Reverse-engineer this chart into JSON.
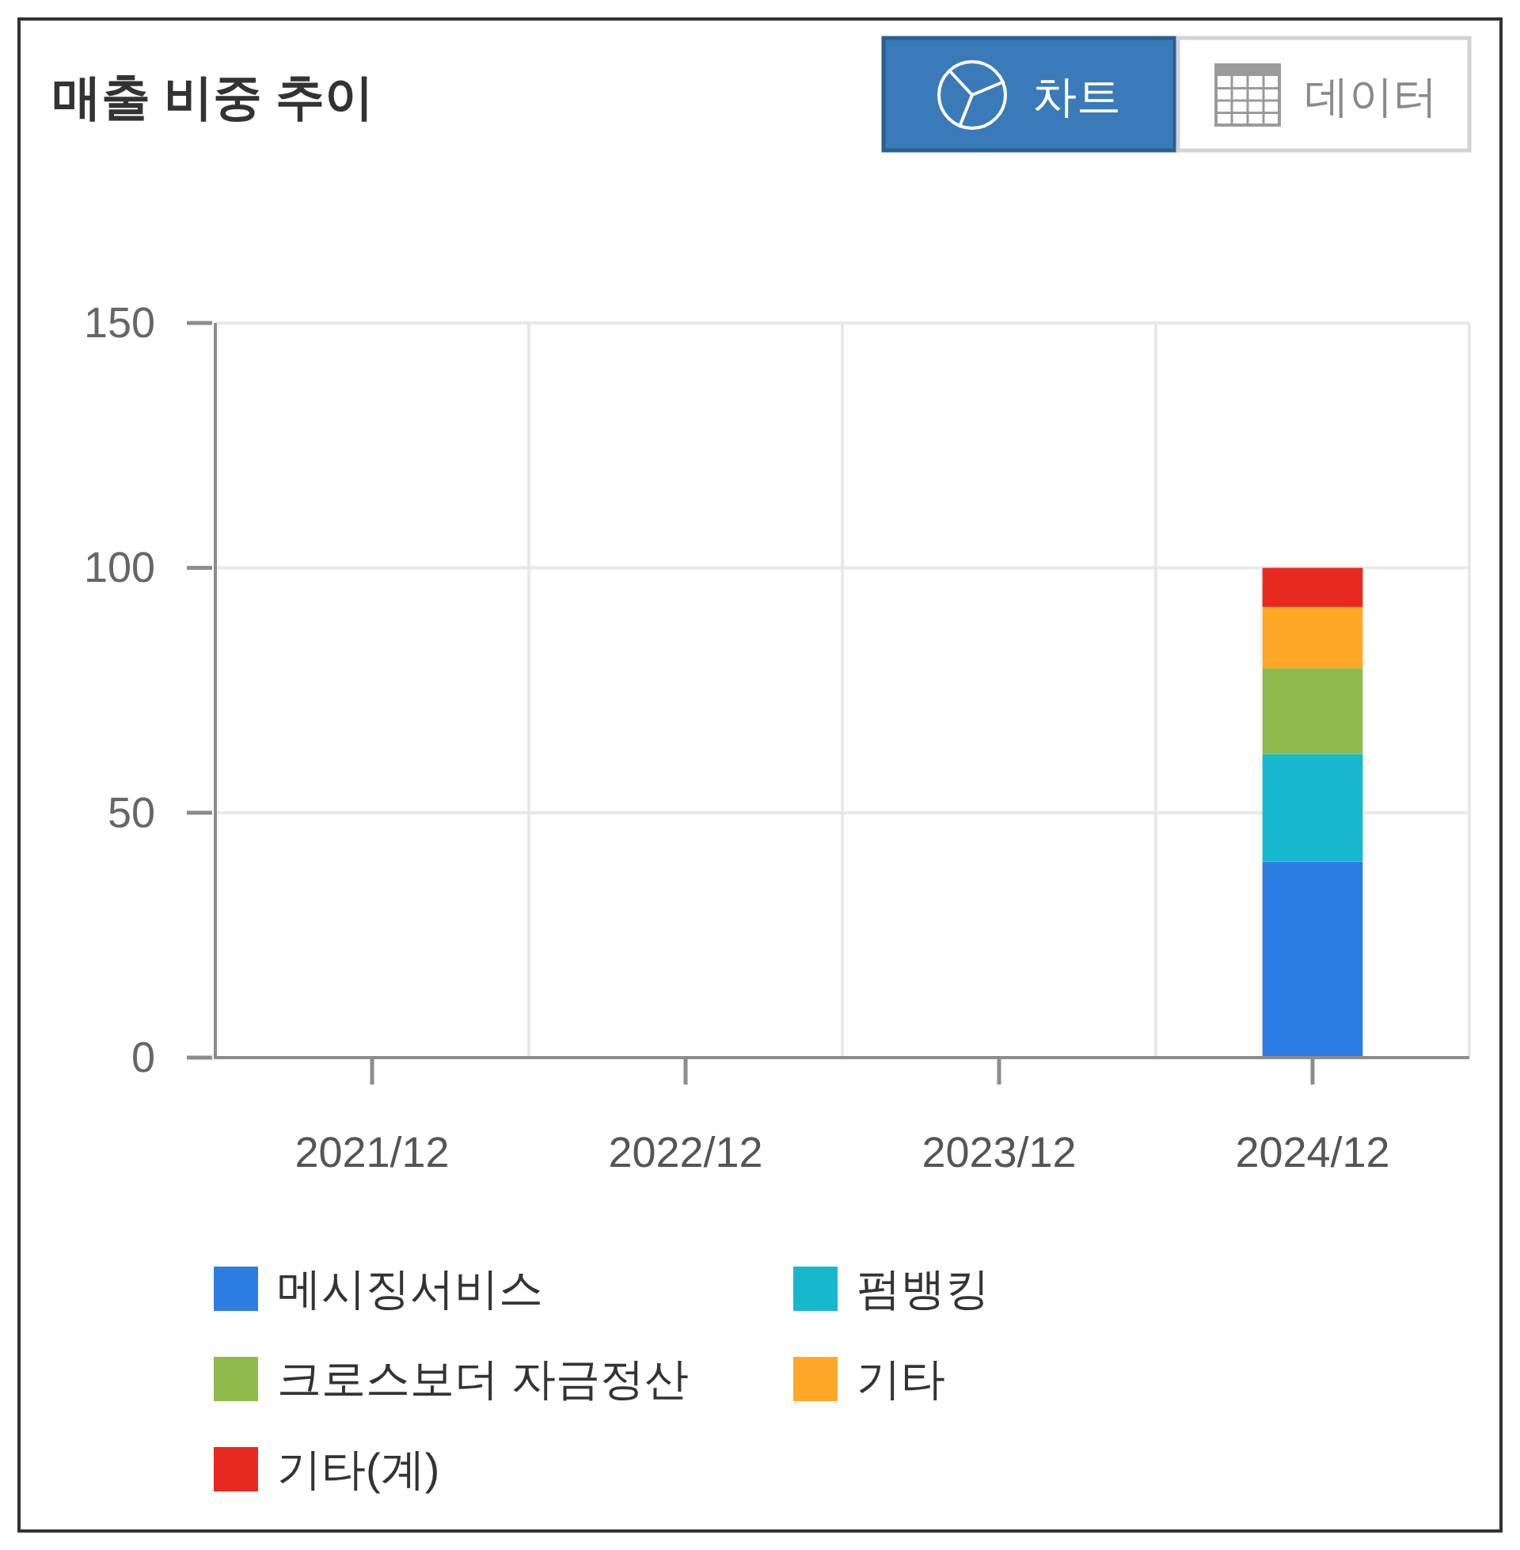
{
  "chart_data": {
    "type": "bar",
    "title": "매출 비중 추이",
    "annotations": [
      "차트",
      "데이터"
    ],
    "categories": [
      "2021/12",
      "2022/12",
      "2023/12",
      "2024/12"
    ],
    "stacked": true,
    "series": [
      {
        "name": "메시징서비스",
        "color": "#2b7de1",
        "values": [
          null,
          null,
          null,
          40
        ]
      },
      {
        "name": "펌뱅킹",
        "color": "#17b8cd",
        "values": [
          null,
          null,
          null,
          22
        ]
      },
      {
        "name": "크로스보더 자금정산",
        "color": "#8fbb4c",
        "values": [
          null,
          null,
          null,
          17.5
        ]
      },
      {
        "name": "기타",
        "color": "#ffa726",
        "values": [
          null,
          null,
          null,
          12.5
        ]
      },
      {
        "name": "기타(계)",
        "color": "#e8291f",
        "values": [
          null,
          null,
          null,
          8
        ]
      }
    ],
    "ylim": [
      0,
      150
    ],
    "yticks": [
      0,
      50,
      100,
      150
    ],
    "grid": true,
    "legend": "bottom"
  }
}
